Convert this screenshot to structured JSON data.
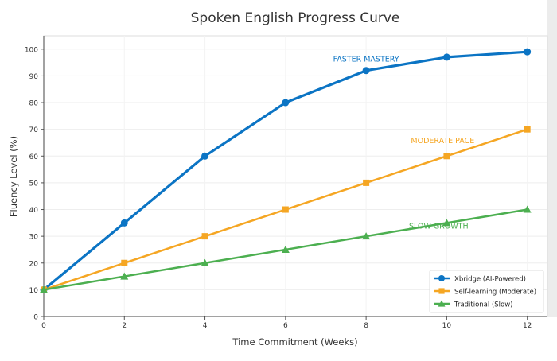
{
  "chart_data": {
    "type": "line",
    "title": "Spoken English Progress Curve",
    "xlabel": "Time Commitment (Weeks)",
    "ylabel": "Fluency Level (%)",
    "xlim": [
      0,
      12.5
    ],
    "ylim": [
      0,
      105
    ],
    "xticks": [
      0,
      2,
      4,
      6,
      8,
      10,
      12
    ],
    "yticks": [
      0,
      10,
      20,
      30,
      40,
      50,
      60,
      70,
      80,
      90,
      100
    ],
    "grid": true,
    "legend_position": "bottom-right",
    "x": [
      0,
      2,
      4,
      6,
      8,
      10,
      12
    ],
    "series": [
      {
        "name": "Xbridge (AI-Powered)",
        "values": [
          10,
          35,
          60,
          80,
          92,
          97,
          99
        ],
        "color": "#0b74c4",
        "marker": "circle"
      },
      {
        "name": "Self-learning (Moderate)",
        "values": [
          10,
          20,
          30,
          40,
          50,
          60,
          70
        ],
        "color": "#f5a623",
        "marker": "square"
      },
      {
        "name": "Traditional (Slow)",
        "values": [
          10,
          15,
          20,
          25,
          30,
          35,
          40
        ],
        "color": "#4caf50",
        "marker": "triangle"
      }
    ],
    "annotations": [
      {
        "text": "FASTER MASTERY",
        "x": 8,
        "y": 96.5,
        "color": "#0b74c4"
      },
      {
        "text": "MODERATE PACE",
        "x": 9.9,
        "y": 66,
        "color": "#f5a623"
      },
      {
        "text": "SLOW GROWTH",
        "x": 9.8,
        "y": 34,
        "color": "#4caf50"
      }
    ]
  }
}
